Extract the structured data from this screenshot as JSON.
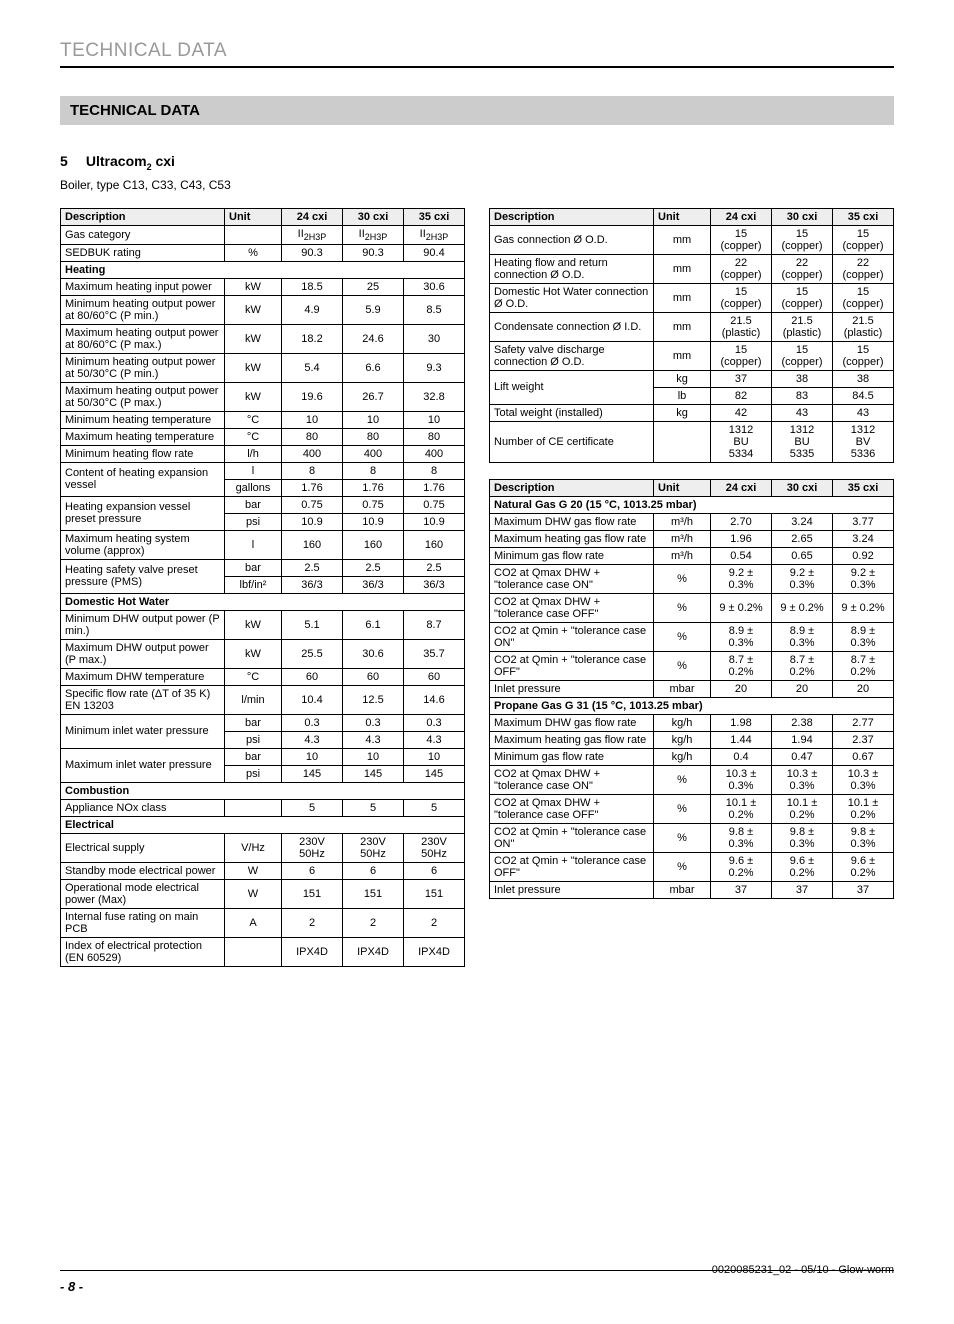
{
  "header_running": "TECHNICAL DATA",
  "section_title": "TECHNICAL DATA",
  "chapter_num": "5",
  "chapter_title": "Ultracom",
  "chapter_sub": "2",
  "chapter_suffix": " cxi",
  "boiler_type": "Boiler, type C13, C33, C43, C53",
  "page_num": "- 8 -",
  "doc_ref": "0020085231_02 - 05/10 - Glow-worm",
  "t1_head": [
    "Description",
    "Unit",
    "24 cxi",
    "30 cxi",
    "35 cxi"
  ],
  "t1": [
    {
      "d": "Gas category",
      "u": "",
      "v": [
        "II_2H3P",
        "II_2H3P",
        "II_2H3P"
      ],
      "subscript": true
    },
    {
      "d": "SEDBUK rating",
      "u": "%",
      "v": [
        "90.3",
        "90.3",
        "90.4"
      ]
    },
    {
      "sec": "Heating"
    },
    {
      "d": "Maximum heating input power",
      "u": "kW",
      "v": [
        "18.5",
        "25",
        "30.6"
      ]
    },
    {
      "d": "Minimum heating output power at 80/60°C (P min.)",
      "u": "kW",
      "v": [
        "4.9",
        "5.9",
        "8.5"
      ]
    },
    {
      "d": "Maximum heating output power at 80/60°C (P max.)",
      "u": "kW",
      "v": [
        "18.2",
        "24.6",
        "30"
      ]
    },
    {
      "d": "Minimum heating output power at 50/30°C (P min.)",
      "u": "kW",
      "v": [
        "5.4",
        "6.6",
        "9.3"
      ]
    },
    {
      "d": "Maximum heating output power at 50/30°C (P max.)",
      "u": "kW",
      "v": [
        "19.6",
        "26.7",
        "32.8"
      ]
    },
    {
      "d": "Minimum heating temperature",
      "u": "°C",
      "v": [
        "10",
        "10",
        "10"
      ]
    },
    {
      "d": "Maximum heating temperature",
      "u": "°C",
      "v": [
        "80",
        "80",
        "80"
      ]
    },
    {
      "d": "Minimum heating flow rate",
      "u": "l/h",
      "v": [
        "400",
        "400",
        "400"
      ]
    },
    {
      "d": "Content of heating expansion vessel",
      "u": "l",
      "v": [
        "8",
        "8",
        "8"
      ],
      "dual": true,
      "u2": "gallons",
      "v2": [
        "1.76",
        "1.76",
        "1.76"
      ]
    },
    {
      "d": "Heating expansion vessel preset pressure",
      "u": "bar",
      "v": [
        "0.75",
        "0.75",
        "0.75"
      ],
      "dual": true,
      "u2": "psi",
      "v2": [
        "10.9",
        "10.9",
        "10.9"
      ]
    },
    {
      "d": "Maximum heating system volume (approx)",
      "u": "l",
      "v": [
        "160",
        "160",
        "160"
      ]
    },
    {
      "d": "Heating safety valve preset pressure (PMS)",
      "u": "bar",
      "v": [
        "2.5",
        "2.5",
        "2.5"
      ],
      "dual": true,
      "u2": "lbf/in²",
      "v2": [
        "36/3",
        "36/3",
        "36/3"
      ]
    },
    {
      "sec": "Domestic Hot Water"
    },
    {
      "d": "Minimum DHW output power (P min.)",
      "u": "kW",
      "v": [
        "5.1",
        "6.1",
        "8.7"
      ]
    },
    {
      "d": "Maximum DHW output power (P max.)",
      "u": "kW",
      "v": [
        "25.5",
        "30.6",
        "35.7"
      ]
    },
    {
      "d": "Maximum DHW temperature",
      "u": "°C",
      "v": [
        "60",
        "60",
        "60"
      ]
    },
    {
      "d": "Specific flow rate (ΔT of 35 K) EN 13203",
      "u": "l/min",
      "v": [
        "10.4",
        "12.5",
        "14.6"
      ]
    },
    {
      "d": "Minimum inlet water pressure",
      "u": "bar",
      "v": [
        "0.3",
        "0.3",
        "0.3"
      ],
      "dual": true,
      "u2": "psi",
      "v2": [
        "4.3",
        "4.3",
        "4.3"
      ]
    },
    {
      "d": "Maximum inlet water pressure",
      "u": "bar",
      "v": [
        "10",
        "10",
        "10"
      ],
      "dual": true,
      "u2": "psi",
      "v2": [
        "145",
        "145",
        "145"
      ]
    },
    {
      "sec": "Combustion"
    },
    {
      "d": "Appliance NOx class",
      "u": "",
      "v": [
        "5",
        "5",
        "5"
      ]
    },
    {
      "sec": "Electrical"
    },
    {
      "d": "Electrical supply",
      "u": "V/Hz",
      "v": [
        "230V 50Hz",
        "230V 50Hz",
        "230V 50Hz"
      ]
    },
    {
      "d": "Standby mode electrical power",
      "u": "W",
      "v": [
        "6",
        "6",
        "6"
      ]
    },
    {
      "d": "Operational mode electrical power (Max)",
      "u": "W",
      "v": [
        "151",
        "151",
        "151"
      ]
    },
    {
      "d": "Internal fuse rating on main PCB",
      "u": "A",
      "v": [
        "2",
        "2",
        "2"
      ]
    },
    {
      "d": "Index of electrical protection (EN 60529)",
      "u": "",
      "v": [
        "IPX4D",
        "IPX4D",
        "IPX4D"
      ]
    }
  ],
  "t2_head": [
    "Description",
    "Unit",
    "24 cxi",
    "30 cxi",
    "35 cxi"
  ],
  "t2": [
    {
      "d": "Gas connection Ø O.D.",
      "u": "mm",
      "v": [
        "15 (copper)",
        "15 (copper)",
        "15 (copper)"
      ]
    },
    {
      "d": "Heating flow and return connection Ø O.D.",
      "u": "mm",
      "v": [
        "22 (copper)",
        "22 (copper)",
        "22 (copper)"
      ]
    },
    {
      "d": "Domestic Hot Water connection Ø O.D.",
      "u": "mm",
      "v": [
        "15 (copper)",
        "15 (copper)",
        "15 (copper)"
      ]
    },
    {
      "d": "Condensate connection Ø I.D.",
      "u": "mm",
      "v": [
        "21.5 (plastic)",
        "21.5 (plastic)",
        "21.5 (plastic)"
      ]
    },
    {
      "d": "Safety valve discharge connection Ø O.D.",
      "u": "mm",
      "v": [
        "15 (copper)",
        "15 (copper)",
        "15 (copper)"
      ]
    },
    {
      "d": "Lift weight",
      "u": "kg",
      "v": [
        "37",
        "38",
        "38"
      ],
      "dual": true,
      "u2": "lb",
      "v2": [
        "82",
        "83",
        "84.5"
      ]
    },
    {
      "d": "Total weight (installed)",
      "u": "kg",
      "v": [
        "42",
        "43",
        "43"
      ]
    },
    {
      "d": "Number of CE certificate",
      "u": "",
      "v": [
        "1312 BU 5334",
        "1312 BU 5335",
        "1312 BV 5336"
      ]
    }
  ],
  "t3_head": [
    "Description",
    "Unit",
    "24 cxi",
    "30 cxi",
    "35 cxi"
  ],
  "t3": [
    {
      "sec": "Natural Gas G 20 (15 °C, 1013.25 mbar)"
    },
    {
      "d": "Maximum DHW gas flow rate",
      "u": "m³/h",
      "v": [
        "2.70",
        "3.24",
        "3.77"
      ]
    },
    {
      "d": "Maximum heating gas flow rate",
      "u": "m³/h",
      "v": [
        "1.96",
        "2.65",
        "3.24"
      ]
    },
    {
      "d": "Minimum gas flow rate",
      "u": "m³/h",
      "v": [
        "0.54",
        "0.65",
        "0.92"
      ]
    },
    {
      "d": "CO2 at Qmax DHW + \"tolerance case ON\"",
      "u": "%",
      "v": [
        "9.2 ± 0.3%",
        "9.2 ± 0.3%",
        "9.2 ± 0.3%"
      ]
    },
    {
      "d": "CO2 at Qmax DHW + \"tolerance case OFF\"",
      "u": "%",
      "v": [
        "9 ± 0.2%",
        "9 ± 0.2%",
        "9 ± 0.2%"
      ]
    },
    {
      "d": "CO2 at Qmin + \"tolerance case ON\"",
      "u": "%",
      "v": [
        "8.9 ± 0.3%",
        "8.9 ± 0.3%",
        "8.9 ± 0.3%"
      ]
    },
    {
      "d": "CO2 at Qmin + \"tolerance case OFF\"",
      "u": "%",
      "v": [
        "8.7 ± 0.2%",
        "8.7 ± 0.2%",
        "8.7 ± 0.2%"
      ]
    },
    {
      "d": "Inlet pressure",
      "u": "mbar",
      "v": [
        "20",
        "20",
        "20"
      ]
    },
    {
      "sec": "Propane Gas G 31 (15 °C, 1013.25 mbar)"
    },
    {
      "d": "Maximum DHW gas flow rate",
      "u": "kg/h",
      "v": [
        "1.98",
        "2.38",
        "2.77"
      ]
    },
    {
      "d": "Maximum heating gas flow rate",
      "u": "kg/h",
      "v": [
        "1.44",
        "1.94",
        "2.37"
      ]
    },
    {
      "d": "Minimum gas flow rate",
      "u": "kg/h",
      "v": [
        "0.4",
        "0.47",
        "0.67"
      ]
    },
    {
      "d": "CO2 at Qmax DHW + \"tolerance case ON\"",
      "u": "%",
      "v": [
        "10.3 ± 0.3%",
        "10.3 ± 0.3%",
        "10.3 ± 0.3%"
      ]
    },
    {
      "d": "CO2 at Qmax DHW + \"tolerance case OFF\"",
      "u": "%",
      "v": [
        "10.1 ± 0.2%",
        "10.1 ± 0.2%",
        "10.1 ± 0.2%"
      ]
    },
    {
      "d": "CO2 at Qmin + \"tolerance case ON\"",
      "u": "%",
      "v": [
        "9.8 ± 0.3%",
        "9.8 ± 0.3%",
        "9.8 ± 0.3%"
      ]
    },
    {
      "d": "CO2 at Qmin + \"tolerance case OFF\"",
      "u": "%",
      "v": [
        "9.6 ± 0.2%",
        "9.6 ± 0.2%",
        "9.6 ± 0.2%"
      ]
    },
    {
      "d": "Inlet pressure",
      "u": "mbar",
      "v": [
        "37",
        "37",
        "37"
      ]
    }
  ]
}
